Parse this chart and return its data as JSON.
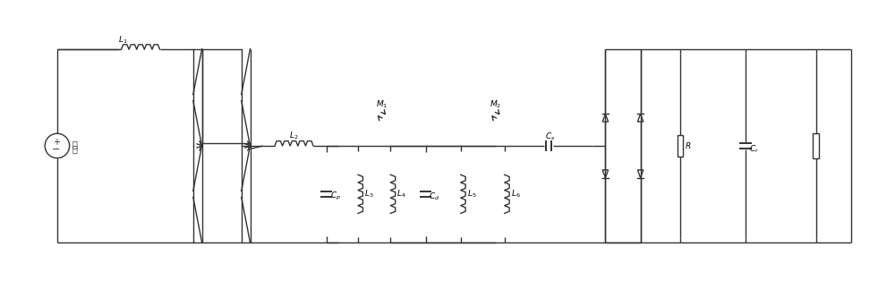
{
  "bg_color": "#ffffff",
  "line_color": "#333333",
  "line_width": 1.0,
  "figsize": [
    10.0,
    3.23
  ],
  "dpi": 100,
  "xlim": [
    0,
    100
  ],
  "ylim": [
    0,
    32.3
  ]
}
